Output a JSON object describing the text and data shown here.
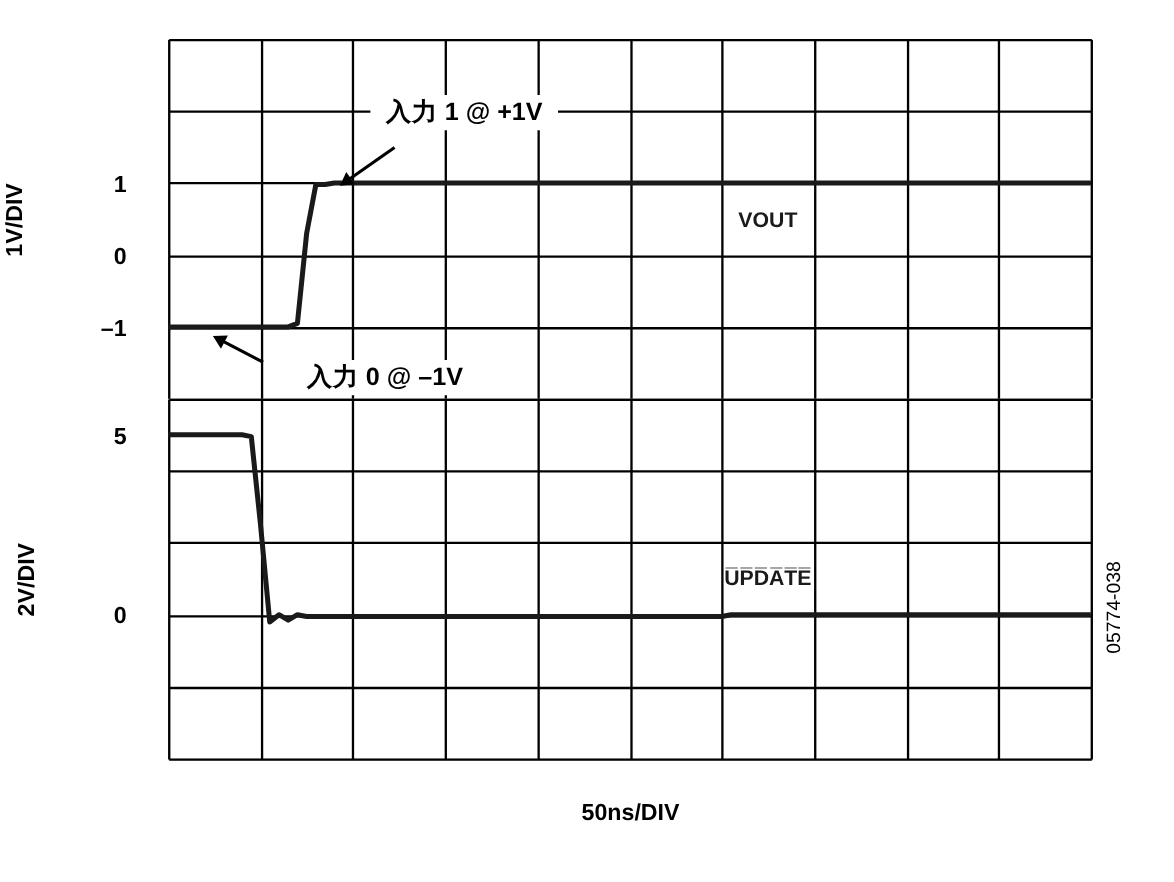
{
  "chart_data": [
    {
      "type": "line",
      "ylabel": "1V/DIV",
      "categories": [
        null,
        null,
        null,
        null,
        null,
        null,
        null,
        null,
        null,
        null,
        null,
        null,
        null,
        null,
        null,
        null,
        null,
        null,
        null,
        null,
        null,
        null,
        null,
        null,
        null,
        null,
        null,
        null,
        null,
        null,
        null,
        null,
        null,
        null,
        null,
        null,
        null,
        null,
        null,
        null,
        null,
        null,
        null,
        null,
        null,
        null,
        null,
        null,
        null,
        null,
        null,
        null,
        null,
        null,
        null,
        null,
        null,
        null,
        null,
        null,
        null,
        null,
        null,
        null,
        null,
        null,
        null,
        null,
        null,
        null,
        null,
        null,
        null,
        null,
        null,
        null,
        null,
        null,
        null,
        null,
        null,
        null,
        null,
        null,
        null,
        null,
        null,
        null,
        null,
        null,
        null,
        null,
        null,
        null,
        null,
        null,
        null,
        null,
        null,
        null,
        null
      ],
      "ylim": [
        -2,
        3
      ],
      "yticks": [
        {
          "value": -2,
          "label": null
        },
        {
          "value": -1,
          "label": "–1"
        },
        0,
        1,
        {
          "value": 2,
          "label": null
        },
        {
          "value": 3,
          "label": null
        }
      ],
      "grid": true,
      "tick_labels": "y",
      "series": [
        {
          "name": "VOUT",
          "color": "#1a1a1a",
          "values": [
            -1,
            -1,
            -1,
            -1,
            -1,
            -1,
            -1,
            -1,
            -1,
            -1,
            -1,
            -1,
            -1,
            -1,
            -0.95,
            0.3,
            0.98,
            0.98,
            1,
            1,
            1,
            1,
            1,
            1,
            1,
            1,
            1,
            1,
            1,
            1,
            1,
            1,
            1,
            1,
            1,
            1,
            1,
            1,
            1,
            1,
            1,
            1,
            1,
            1,
            1,
            1,
            1,
            1,
            1,
            1,
            1,
            1,
            1,
            1,
            1,
            1,
            1,
            1,
            1,
            1,
            1,
            1,
            1,
            1,
            1,
            1,
            1,
            1,
            1,
            1,
            1,
            1,
            1,
            1,
            1,
            1,
            1,
            1,
            1,
            1,
            1,
            1,
            1,
            1,
            1,
            1,
            1,
            1,
            1,
            1,
            1,
            1,
            1,
            1,
            1,
            1,
            1,
            1,
            1,
            1,
            1
          ]
        }
      ],
      "annotations": [
        "入力 1 @ +1V",
        "入力 0 @ –1V"
      ]
    },
    {
      "type": "line",
      "ylabel": "2V/DIV",
      "xlabel": "50ns/DIV",
      "categories": [
        null,
        null,
        null,
        null,
        null,
        null,
        null,
        null,
        null,
        null,
        null,
        null,
        null,
        null,
        null,
        null,
        null,
        null,
        null,
        null,
        null,
        null,
        null,
        null,
        null,
        null,
        null,
        null,
        null,
        null,
        null,
        null,
        null,
        null,
        null,
        null,
        null,
        null,
        null,
        null,
        null,
        null,
        null,
        null,
        null,
        null,
        null,
        null,
        null,
        null,
        null,
        null,
        null,
        null,
        null,
        null,
        null,
        null,
        null,
        null,
        null,
        null,
        null,
        null,
        null,
        null,
        null,
        null,
        null,
        null,
        null,
        null,
        null,
        null,
        null,
        null,
        null,
        null,
        null,
        null,
        null,
        null,
        null,
        null,
        null,
        null,
        null,
        null,
        null,
        null,
        null,
        null,
        null,
        null,
        null,
        null,
        null,
        null,
        null,
        null,
        null
      ],
      "ylim": [
        -4,
        6
      ],
      "yticks": [
        {
          "value": -4,
          "label": null
        },
        {
          "value": -2,
          "label": null
        },
        0,
        {
          "value": 2,
          "label": null
        },
        {
          "value": 4,
          "label": null
        },
        5,
        {
          "value": 6,
          "label": null
        }
      ],
      "grid": true,
      "tick_labels": "y",
      "series": [
        {
          "name": "U̅P̅D̅A̅T̅E̅",
          "color": "#1a1a1a",
          "values": [
            5,
            5,
            5,
            5,
            5,
            5,
            5,
            5,
            5,
            4.95,
            2.5,
            -0.2,
            0,
            -0.15,
            0,
            -0.05,
            -0.05,
            -0.05,
            -0.05,
            -0.05,
            -0.05,
            -0.05,
            -0.05,
            -0.05,
            -0.05,
            -0.05,
            -0.05,
            -0.05,
            -0.05,
            -0.05,
            -0.05,
            -0.05,
            -0.05,
            -0.05,
            -0.05,
            -0.05,
            -0.05,
            -0.05,
            -0.05,
            -0.05,
            -0.05,
            -0.05,
            -0.05,
            -0.05,
            -0.05,
            -0.05,
            -0.05,
            -0.05,
            -0.05,
            -0.05,
            -0.05,
            -0.05,
            -0.05,
            -0.05,
            -0.05,
            -0.05,
            -0.05,
            -0.05,
            -0.05,
            -0.05,
            -0.05,
            0,
            0,
            0,
            0,
            0,
            0,
            0,
            0,
            0,
            0,
            0,
            0,
            0,
            0,
            0,
            0,
            0,
            0,
            0,
            0,
            0,
            0,
            0,
            0,
            0,
            0,
            0,
            0,
            0,
            0,
            0,
            0,
            0,
            0,
            0,
            0,
            0,
            0,
            0,
            0
          ]
        }
      ],
      "annotations": [
        "05774-038"
      ]
    }
  ]
}
